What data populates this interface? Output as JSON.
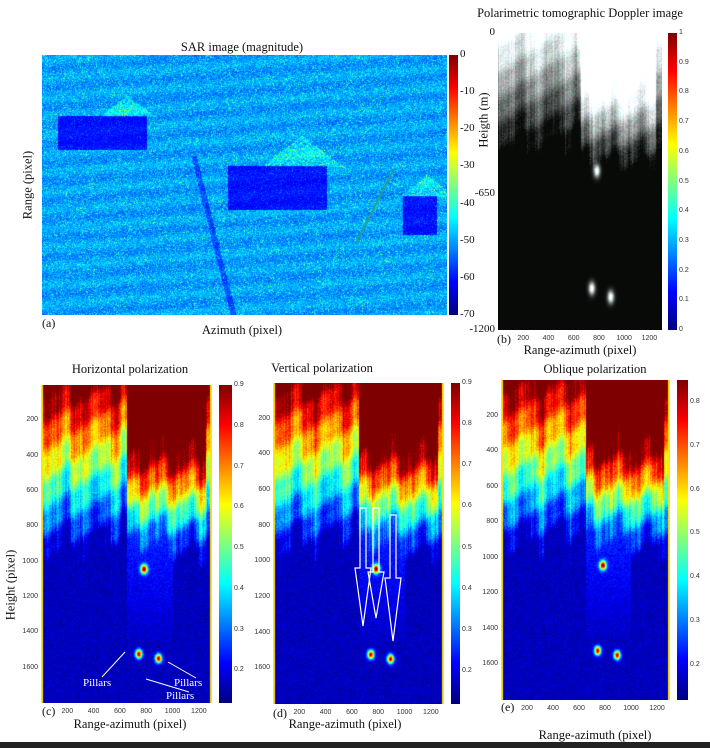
{
  "chart_data": [
    {
      "id": "a",
      "type": "heatmap",
      "panel_label": "(a)",
      "title": "SAR image (magnitude)",
      "xlabel": "Azimuth (pixel)",
      "ylabel": "Range (pixel)",
      "colormap": "jet",
      "clim": [
        -70,
        0
      ],
      "colorbar_ticks": [
        "0",
        "-10",
        "-20",
        "-30",
        "-40",
        "-50",
        "-60",
        "-70"
      ],
      "colorbar_tick_values": [
        0,
        -10,
        -20,
        -30,
        -40,
        -50,
        -60,
        -70
      ],
      "line_color": "#2e9a8a"
    },
    {
      "id": "b",
      "type": "heatmap",
      "panel_label": "(b)",
      "title": "Polarimetric tomographic Doppler image",
      "xlabel": "Range-azimuth (pixel)",
      "ylabel": "Heigth (m)",
      "colormap": "jet",
      "clim": [
        0,
        1
      ],
      "xlim": [
        0,
        1300
      ],
      "ylim": [
        0,
        -1200
      ],
      "xticks": [
        "200",
        "400",
        "600",
        "800",
        "1000",
        "1200"
      ],
      "xtick_values": [
        200,
        400,
        600,
        800,
        1000,
        1200
      ],
      "yticks": [
        "0",
        "-650",
        "-1200"
      ],
      "ytick_values": [
        0,
        -650,
        -1200
      ],
      "colorbar_ticks": [
        "1",
        "0.9",
        "0.8",
        "0.7",
        "0.6",
        "0.5",
        "0.4",
        "0.3",
        "0.2",
        "0.1",
        "0"
      ],
      "colorbar_tick_values": [
        1,
        0.9,
        0.8,
        0.7,
        0.6,
        0.5,
        0.4,
        0.3,
        0.2,
        0.1,
        0
      ],
      "bright_spots": [
        [
          780,
          -555
        ],
        [
          740,
          -1030
        ],
        [
          890,
          -1065
        ]
      ]
    },
    {
      "id": "c",
      "type": "heatmap",
      "panel_label": "(c)",
      "title": "Horizontal polarization",
      "xlabel": "Range-azimuth (pixel)",
      "ylabel": "Height (pixel)",
      "colormap": "jet",
      "clim": [
        0.12,
        0.9
      ],
      "xlim": [
        0,
        1300
      ],
      "ylim": [
        0,
        1800
      ],
      "xticks": [
        "200",
        "400",
        "600",
        "800",
        "1000",
        "1200"
      ],
      "xtick_values": [
        200,
        400,
        600,
        800,
        1000,
        1200
      ],
      "yticks": [
        "200",
        "400",
        "600",
        "800",
        "1000",
        "1200",
        "1400",
        "1600"
      ],
      "ytick_values": [
        200,
        400,
        600,
        800,
        1000,
        1200,
        1400,
        1600
      ],
      "colorbar_ticks": [
        "0.9",
        "0.8",
        "0.7",
        "0.6",
        "0.5",
        "0.4",
        "0.3",
        "0.2"
      ],
      "colorbar_tick_values": [
        0.9,
        0.8,
        0.7,
        0.6,
        0.5,
        0.4,
        0.3,
        0.2
      ],
      "bright_spots": [
        [
          780,
          1040
        ],
        [
          740,
          1520
        ],
        [
          890,
          1545
        ]
      ],
      "annotations": [
        "Pillars",
        "Pillars",
        "Pillars"
      ]
    },
    {
      "id": "d",
      "type": "heatmap",
      "panel_label": "(d)",
      "title": "Vertical polarization",
      "xlabel": "Range-azimuth (pixel)",
      "ylabel": "",
      "colormap": "jet",
      "clim": [
        0.12,
        0.9
      ],
      "xlim": [
        0,
        1300
      ],
      "ylim": [
        0,
        1800
      ],
      "xticks": [
        "200",
        "400",
        "600",
        "800",
        "1000",
        "1200"
      ],
      "xtick_values": [
        200,
        400,
        600,
        800,
        1000,
        1200
      ],
      "yticks": [
        "200",
        "400",
        "600",
        "800",
        "1000",
        "1200",
        "1400",
        "1600"
      ],
      "ytick_values": [
        200,
        400,
        600,
        800,
        1000,
        1200,
        1400,
        1600
      ],
      "colorbar_ticks": [
        "0.9",
        "0.8",
        "0.7",
        "0.6",
        "0.5",
        "0.4",
        "0.3",
        "0.2"
      ],
      "colorbar_tick_values": [
        0.9,
        0.8,
        0.7,
        0.6,
        0.5,
        0.4,
        0.3,
        0.2
      ],
      "bright_spots": [
        [
          780,
          1040
        ],
        [
          740,
          1520
        ],
        [
          890,
          1545
        ]
      ],
      "arrow_color": "#ffffff"
    },
    {
      "id": "e",
      "type": "heatmap",
      "panel_label": "(e)",
      "title": "Oblique polarization",
      "xlabel": "Range-azimuth (pixel)",
      "ylabel": "",
      "colormap": "jet",
      "clim": [
        0.12,
        0.85
      ],
      "xlim": [
        0,
        1300
      ],
      "ylim": [
        0,
        1800
      ],
      "xticks": [
        "200",
        "400",
        "600",
        "800",
        "1000",
        "1200"
      ],
      "xtick_values": [
        200,
        400,
        600,
        800,
        1000,
        1200
      ],
      "yticks": [
        "200",
        "400",
        "600",
        "800",
        "1000",
        "1200",
        "1400",
        "1600"
      ],
      "ytick_values": [
        200,
        400,
        600,
        800,
        1000,
        1200,
        1400,
        1600
      ],
      "colorbar_ticks": [
        "0.8",
        "0.7",
        "0.6",
        "0.5",
        "0.4",
        "0.3",
        "0.2"
      ],
      "colorbar_tick_values": [
        0.8,
        0.7,
        0.6,
        0.5,
        0.4,
        0.3,
        0.2
      ],
      "bright_spots": [
        [
          780,
          1040
        ],
        [
          740,
          1520
        ],
        [
          890,
          1545
        ]
      ]
    }
  ]
}
